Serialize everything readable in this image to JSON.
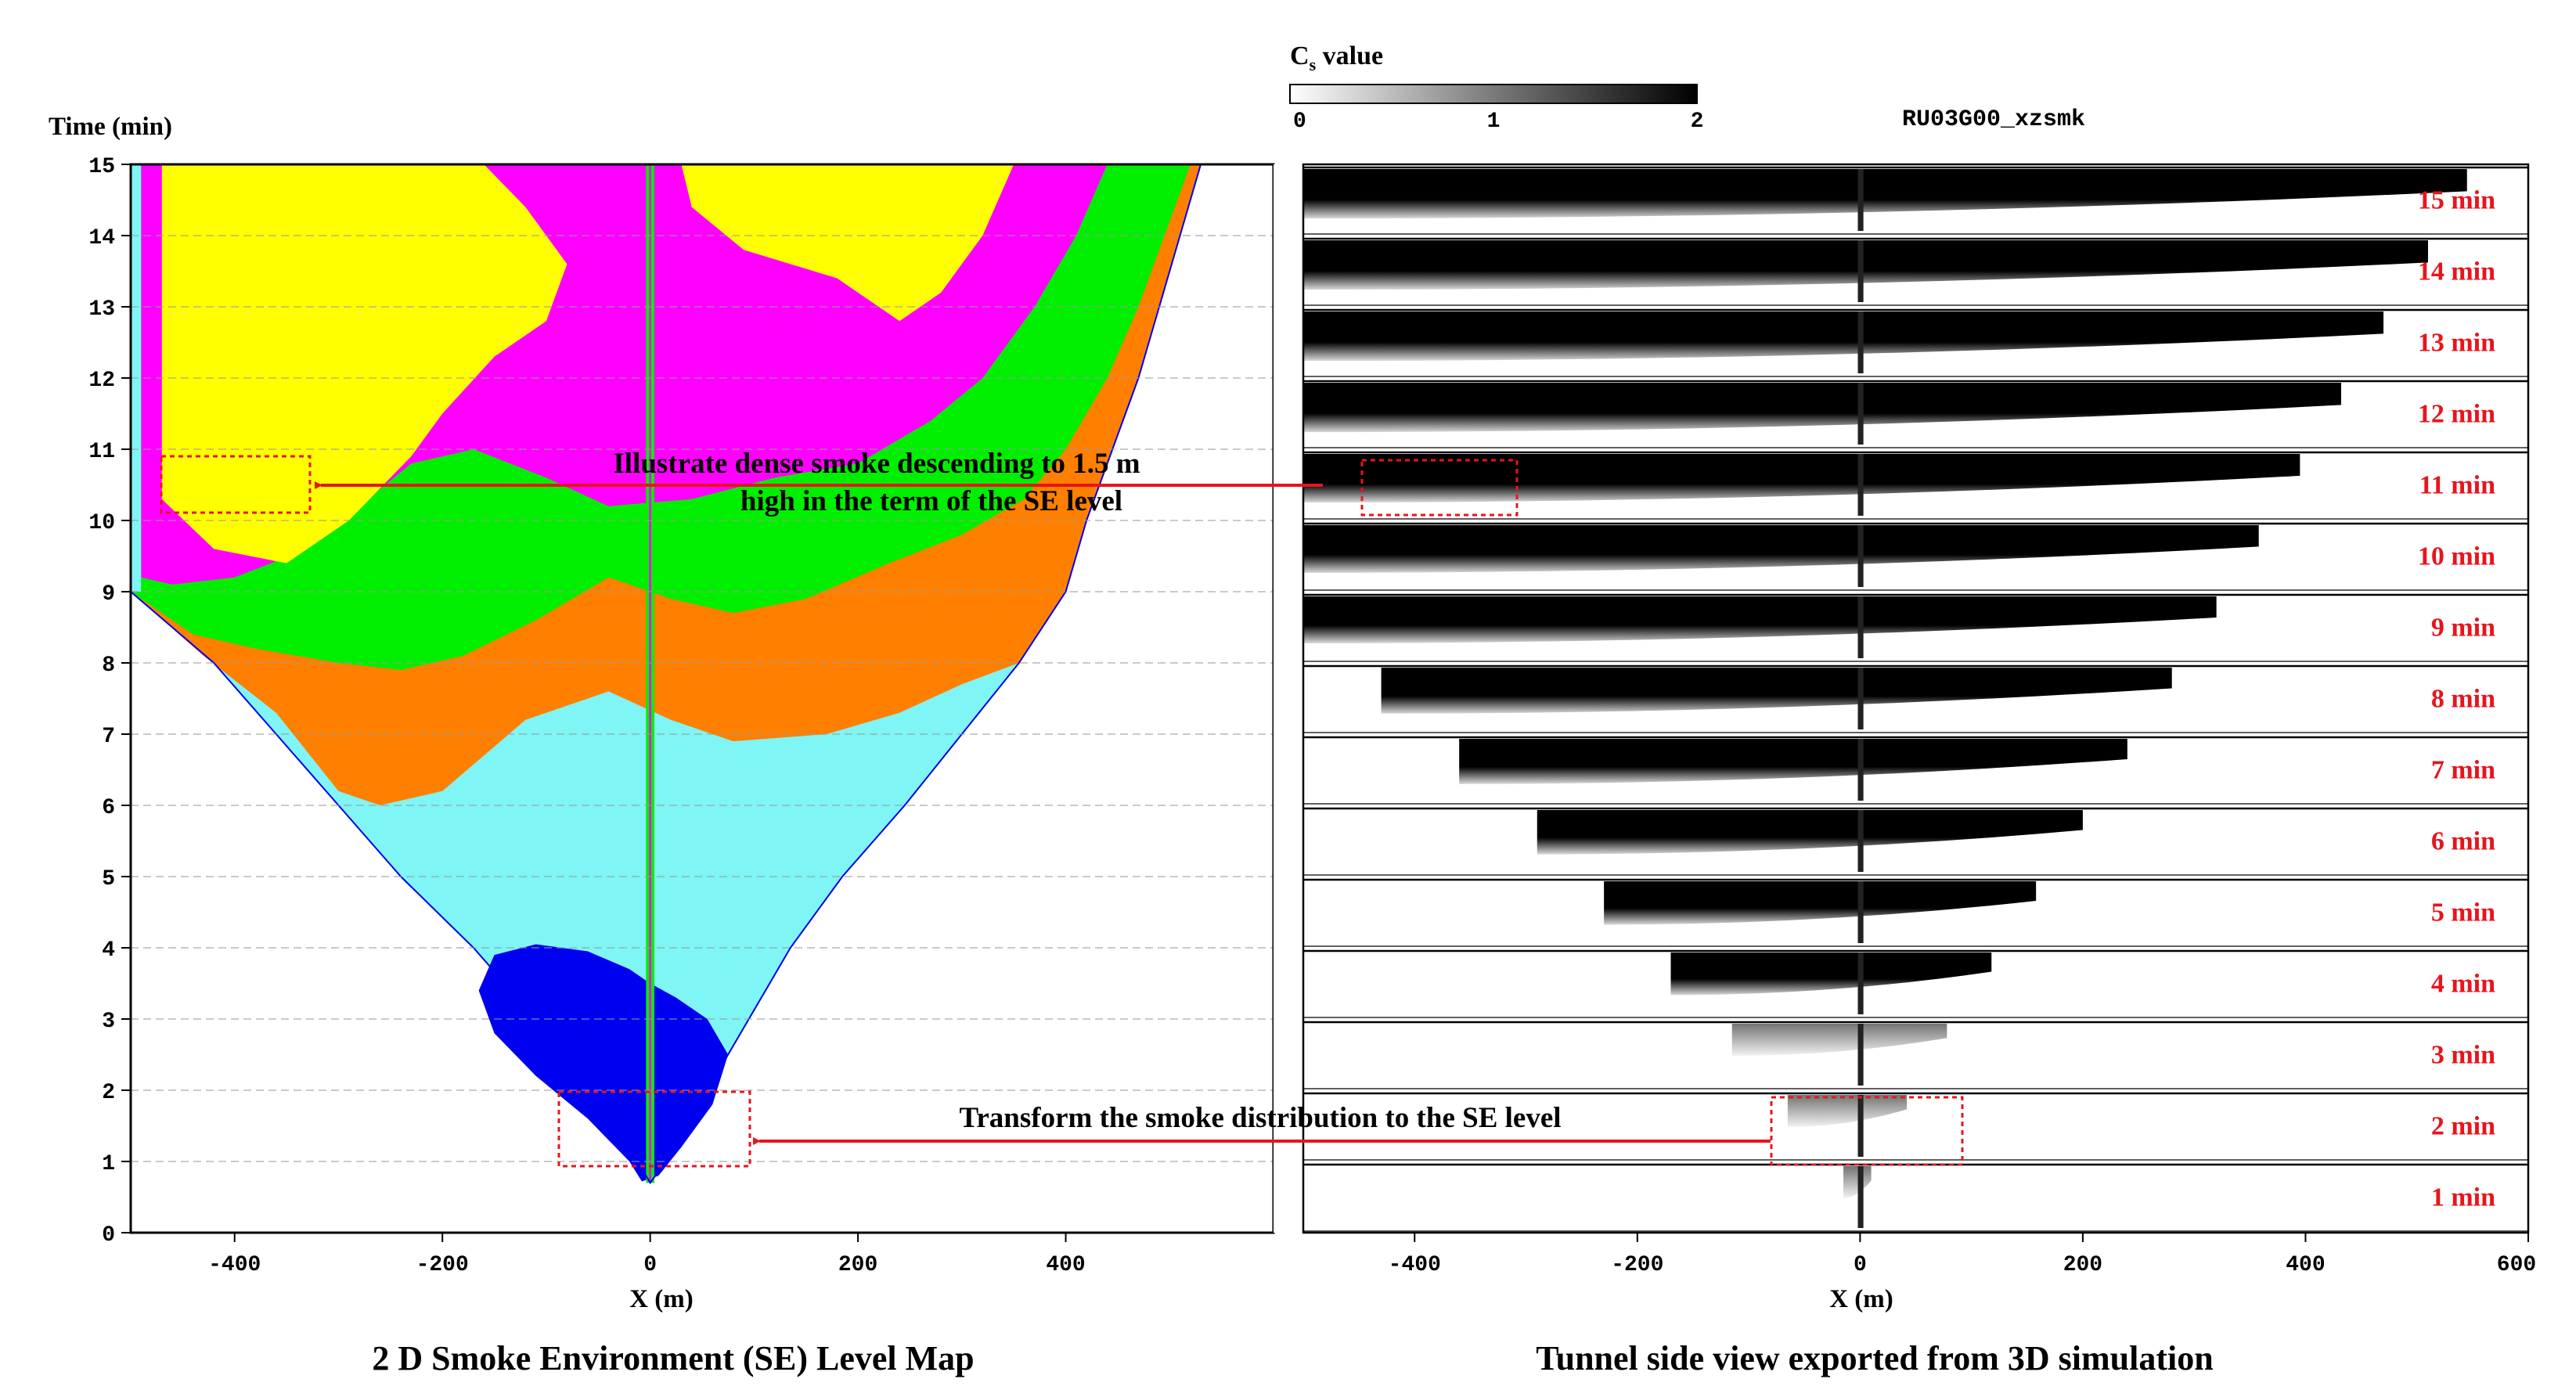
{
  "colorbar": {
    "title_main": "C",
    "title_sub": "s",
    "title_rest": " value",
    "ticks": [
      "0",
      "1",
      "2"
    ],
    "range": [
      0,
      2
    ]
  },
  "run_label": "RU03G00_xzsmk",
  "annotations": {
    "top_line1": "Illustrate dense smoke descending  to 1.5 m",
    "top_line2": "high in the term of the SE level",
    "bottom": "Transform the smoke distribution  to the SE level",
    "arrow_color": "#e8141c"
  },
  "chart_data": [
    {
      "type": "heatmap",
      "title": "2 D Smoke Environment (SE) Level Map",
      "xlabel": "X (m)",
      "ylabel": "Time (min)",
      "xlim": [
        -500,
        600
      ],
      "ylim": [
        0,
        15
      ],
      "x_ticks": [
        "-400",
        "-200",
        "0",
        "200",
        "400"
      ],
      "y_ticks": [
        "0",
        "1",
        "2",
        "3",
        "4",
        "5",
        "6",
        "7",
        "8",
        "9",
        "10",
        "11",
        "12",
        "13",
        "14",
        "15"
      ],
      "grid": "dashed horizontal",
      "level_colors": [
        "#0000f0",
        "#7ff5f5",
        "#ff8000",
        "#00ef00",
        "#ff00ff",
        "#ffff00"
      ],
      "regions": {
        "smoke_front_left": [
          [
            0.7,
            0
          ],
          [
            1,
            -12
          ],
          [
            2,
            -50
          ],
          [
            3,
            -110
          ],
          [
            4,
            -170
          ],
          [
            5,
            -240
          ],
          [
            6,
            -300
          ],
          [
            7,
            -360
          ],
          [
            8,
            -420
          ],
          [
            9,
            -500
          ]
        ],
        "smoke_front_right": [
          [
            0.7,
            0
          ],
          [
            1,
            15
          ],
          [
            2,
            55
          ],
          [
            3,
            95
          ],
          [
            4,
            135
          ],
          [
            5,
            185
          ],
          [
            6,
            245
          ],
          [
            7,
            300
          ],
          [
            8,
            355
          ],
          [
            9,
            400
          ],
          [
            10,
            420
          ],
          [
            11,
            445
          ],
          [
            12,
            470
          ],
          [
            13,
            490
          ],
          [
            14,
            510
          ],
          [
            15,
            530
          ]
        ],
        "dense_level_onset_left_min": 9.0,
        "highlight_box_top": {
          "x": [
            -480,
            -330
          ],
          "t": [
            10.1,
            10.8
          ]
        },
        "highlight_box_bottom": {
          "x": [
            -95,
            85
          ],
          "t": [
            1.0,
            2.0
          ]
        }
      }
    },
    {
      "type": "heatmap",
      "title": "Tunnel side view exported from 3D simulation",
      "xlabel": "X (m)",
      "xlim": [
        -500,
        600
      ],
      "x_ticks": [
        "-400",
        "-200",
        "0",
        "200",
        "400",
        "600"
      ],
      "snapshot_labels": [
        "15 min",
        "14 min",
        "13 min",
        "12 min",
        "11 min",
        "10 min",
        "9 min",
        "8 min",
        "7 min",
        "6 min",
        "5 min",
        "4 min",
        "3 min",
        "2 min",
        "1 min"
      ],
      "snapshots": [
        {
          "t": 15,
          "left": -500,
          "right": 545
        },
        {
          "t": 14,
          "left": -500,
          "right": 510
        },
        {
          "t": 13,
          "left": -500,
          "right": 470
        },
        {
          "t": 12,
          "left": -500,
          "right": 432
        },
        {
          "t": 11,
          "left": -500,
          "right": 395
        },
        {
          "t": 10,
          "left": -500,
          "right": 358
        },
        {
          "t": 9,
          "left": -500,
          "right": 320
        },
        {
          "t": 8,
          "left": -430,
          "right": 280
        },
        {
          "t": 7,
          "left": -360,
          "right": 240
        },
        {
          "t": 6,
          "left": -290,
          "right": 200
        },
        {
          "t": 5,
          "left": -230,
          "right": 158
        },
        {
          "t": 4,
          "left": -170,
          "right": 118
        },
        {
          "t": 3,
          "left": -115,
          "right": 78
        },
        {
          "t": 2,
          "left": -65,
          "right": 42
        },
        {
          "t": 1,
          "left": -15,
          "right": 10
        }
      ],
      "highlight_box_top": {
        "x": [
          -450,
          -310
        ],
        "snapshot": "11 min"
      },
      "highlight_box_bottom": {
        "x": [
          -85,
          85
        ],
        "snapshot": "2 min"
      }
    }
  ]
}
